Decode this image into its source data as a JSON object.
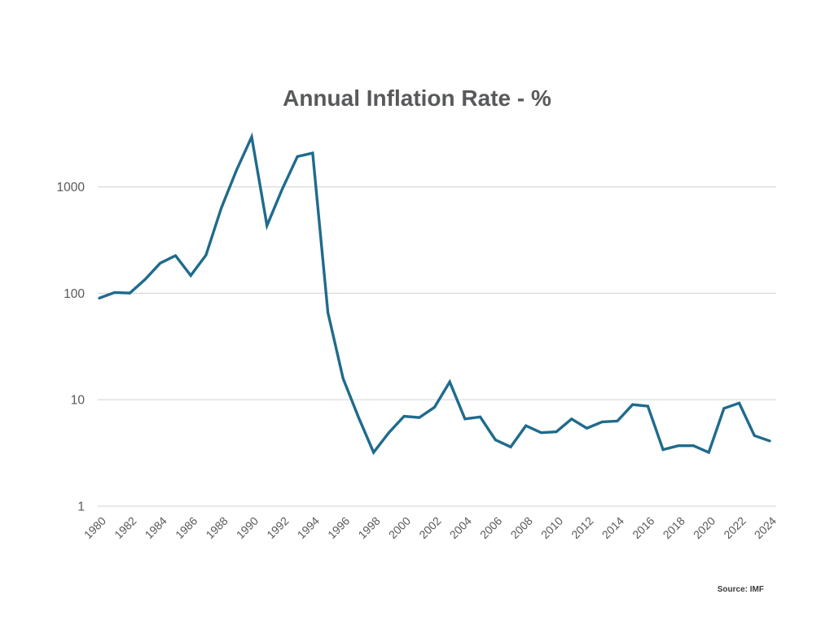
{
  "chart_data": {
    "type": "line",
    "title": "Annual Inflation Rate - %",
    "source_note": "Source: IMF",
    "xlabel": "",
    "ylabel": "",
    "y_scale": "log10",
    "y_ticks": [
      1,
      10,
      100,
      1000
    ],
    "ylim": [
      1,
      3200
    ],
    "x_tick_interval": 2,
    "grid": "horizontal-only",
    "legend": "none",
    "colors": {
      "line": "#1f6b8d",
      "grid": "#d9d9d9",
      "tick_label": "#595959",
      "title": "#58595b",
      "source": "#3b3b3b",
      "background": "#ffffff"
    },
    "x": [
      1980,
      1981,
      1982,
      1983,
      1984,
      1985,
      1986,
      1987,
      1988,
      1989,
      1990,
      1991,
      1992,
      1993,
      1994,
      1995,
      1996,
      1997,
      1998,
      1999,
      2000,
      2001,
      2002,
      2003,
      2004,
      2005,
      2006,
      2007,
      2008,
      2009,
      2010,
      2011,
      2012,
      2013,
      2014,
      2015,
      2016,
      2017,
      2018,
      2019,
      2020,
      2021,
      2022,
      2023,
      2024
    ],
    "series": [
      {
        "name": "Annual inflation rate (%)",
        "values": [
          90.2,
          101.7,
          100.5,
          135.0,
          192.1,
          226.0,
          147.1,
          228.3,
          629.1,
          1430.7,
          2947.7,
          432.8,
          951.6,
          1928.0,
          2075.9,
          66.0,
          15.8,
          6.9,
          3.2,
          4.9,
          7.0,
          6.8,
          8.5,
          14.7,
          6.6,
          6.9,
          4.2,
          3.6,
          5.7,
          4.9,
          5.0,
          6.6,
          5.4,
          6.2,
          6.3,
          9.0,
          8.7,
          3.4,
          3.7,
          3.7,
          3.2,
          8.3,
          9.3,
          4.6,
          4.1
        ]
      }
    ]
  }
}
